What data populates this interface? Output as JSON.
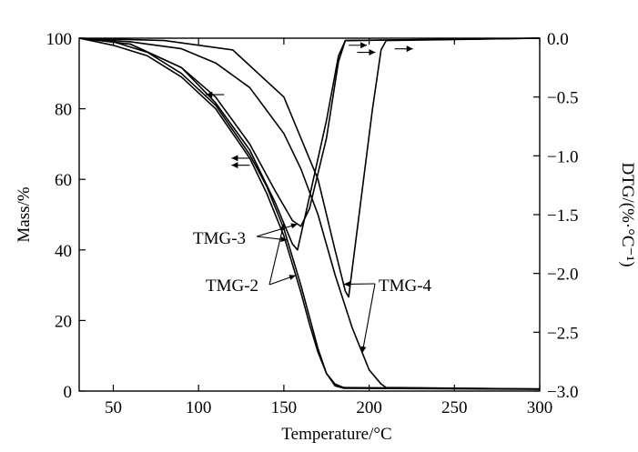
{
  "chart_data": {
    "type": "line",
    "title": "",
    "xlabel": "Temperature/°C",
    "ylabel_left": "Mass/%",
    "ylabel_right": "DTG/(%·°C⁻¹)",
    "xlim": [
      30,
      300
    ],
    "ylim_left": [
      0,
      100
    ],
    "ylim_right": [
      -3.0,
      0.0
    ],
    "x_ticks": [
      50,
      100,
      150,
      200,
      250,
      300
    ],
    "y_ticks_left": [
      0,
      20,
      40,
      60,
      80,
      100
    ],
    "y_ticks_right": [
      0.0,
      -0.5,
      -1.0,
      -1.5,
      -2.0,
      -2.5,
      -3.0
    ],
    "y_tick_labels_right": [
      "0.0",
      "−0.5",
      "−1.0",
      "−1.5",
      "−2.0",
      "−2.5",
      "−3.0"
    ],
    "grid": false,
    "legend": "none",
    "series": [
      {
        "name": "TMG-2 mass",
        "axis": "left",
        "x": [
          30,
          50,
          70,
          90,
          110,
          130,
          140,
          150,
          160,
          165,
          170,
          175,
          180,
          185,
          300
        ],
        "y": [
          100,
          98,
          95,
          89,
          80,
          66,
          56,
          44,
          28,
          19,
          11,
          5,
          1.5,
          0.8,
          0.5
        ]
      },
      {
        "name": "TMG-3 mass",
        "axis": "left",
        "x": [
          30,
          50,
          70,
          90,
          110,
          130,
          140,
          150,
          160,
          165,
          170,
          175,
          180,
          185,
          300
        ],
        "y": [
          100,
          99,
          96,
          90,
          81,
          67,
          58,
          46,
          30,
          21,
          12,
          5,
          2,
          1,
          0.6
        ]
      },
      {
        "name": "TMG-4 mass",
        "axis": "left",
        "x": [
          30,
          60,
          90,
          110,
          130,
          150,
          160,
          170,
          180,
          190,
          200,
          207,
          210,
          300
        ],
        "y": [
          100,
          99,
          97,
          93,
          86,
          73,
          63,
          50,
          33,
          18,
          6,
          2,
          1,
          0.6
        ]
      },
      {
        "name": "TMG-2 DTG",
        "axis": "right",
        "x": [
          30,
          60,
          90,
          110,
          130,
          145,
          155,
          158,
          165,
          175,
          182,
          186,
          300
        ],
        "y": [
          0.0,
          -0.05,
          -0.25,
          -0.55,
          -0.95,
          -1.4,
          -1.75,
          -1.8,
          -1.35,
          -0.7,
          -0.15,
          -0.02,
          0.0
        ]
      },
      {
        "name": "TMG-3 DTG",
        "axis": "right",
        "x": [
          30,
          60,
          90,
          110,
          130,
          145,
          155,
          160,
          165,
          175,
          182,
          186,
          300
        ],
        "y": [
          0.0,
          -0.05,
          -0.25,
          -0.5,
          -0.9,
          -1.3,
          -1.55,
          -1.6,
          -1.45,
          -0.85,
          -0.2,
          -0.02,
          0.0
        ]
      },
      {
        "name": "TMG-4 DTG",
        "axis": "right",
        "x": [
          30,
          80,
          120,
          150,
          170,
          180,
          186,
          188,
          195,
          202,
          207,
          210,
          300
        ],
        "y": [
          0.0,
          -0.02,
          -0.1,
          -0.5,
          -1.2,
          -1.8,
          -2.15,
          -2.2,
          -1.4,
          -0.6,
          -0.1,
          -0.02,
          0.0
        ]
      }
    ],
    "annotations": [
      {
        "text": "TMG-3",
        "targets": [
          "TMG-3 DTG",
          "TMG-3 mass"
        ]
      },
      {
        "text": "TMG-2",
        "targets": [
          "TMG-2 DTG",
          "TMG-2 mass"
        ]
      },
      {
        "text": "TMG-4",
        "targets": [
          "TMG-4 DTG",
          "TMG-4 mass"
        ]
      }
    ],
    "arrows": [
      {
        "direction": "right",
        "x": 188,
        "left_y": 98
      },
      {
        "direction": "right",
        "x": 193,
        "left_y": 96
      },
      {
        "direction": "right",
        "x": 215,
        "left_y": 97
      },
      {
        "direction": "left",
        "x": 115,
        "left_y": 84
      },
      {
        "direction": "left",
        "x": 130,
        "left_y": 66
      },
      {
        "direction": "left",
        "x": 130,
        "left_y": 64
      }
    ]
  }
}
